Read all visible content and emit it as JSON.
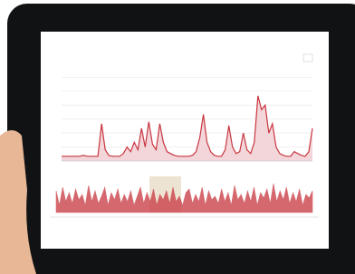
{
  "chart_data": [
    {
      "type": "line",
      "color": "#c8363f",
      "fill": "#f3d6da",
      "grid": true,
      "ylim": [
        0,
        100
      ],
      "yticks": [
        0,
        15,
        30,
        45,
        60,
        75,
        90
      ],
      "values": [
        5,
        5,
        5,
        5,
        5,
        5,
        6,
        5,
        5,
        5,
        5,
        40,
        12,
        6,
        5,
        5,
        5,
        8,
        15,
        10,
        20,
        12,
        35,
        15,
        42,
        18,
        12,
        40,
        20,
        10,
        8,
        6,
        5,
        5,
        5,
        5,
        6,
        10,
        25,
        50,
        20,
        10,
        6,
        5,
        5,
        12,
        38,
        15,
        8,
        10,
        30,
        12,
        8,
        20,
        70,
        55,
        60,
        30,
        40,
        15,
        8,
        6,
        5,
        5,
        10,
        8,
        6,
        5,
        10,
        35
      ]
    },
    {
      "type": "area",
      "color": "#c8363f",
      "ylim": [
        0,
        100
      ],
      "values": [
        60,
        20,
        70,
        30,
        55,
        25,
        65,
        35,
        50,
        20,
        75,
        30,
        60,
        25,
        45,
        70,
        20,
        55,
        35,
        65,
        25,
        50,
        30,
        60,
        20,
        45,
        70,
        25,
        55,
        30,
        65,
        20,
        50,
        35,
        60,
        25,
        70,
        30,
        45,
        20,
        55,
        65,
        25,
        50,
        30,
        70,
        20,
        60,
        35,
        45,
        25,
        65,
        30,
        55,
        20,
        75,
        35,
        50,
        25,
        60,
        30,
        70,
        20,
        55,
        40,
        65,
        25,
        80,
        30,
        60,
        35,
        70,
        25,
        55,
        30,
        65,
        20,
        50,
        40,
        60
      ]
    }
  ]
}
